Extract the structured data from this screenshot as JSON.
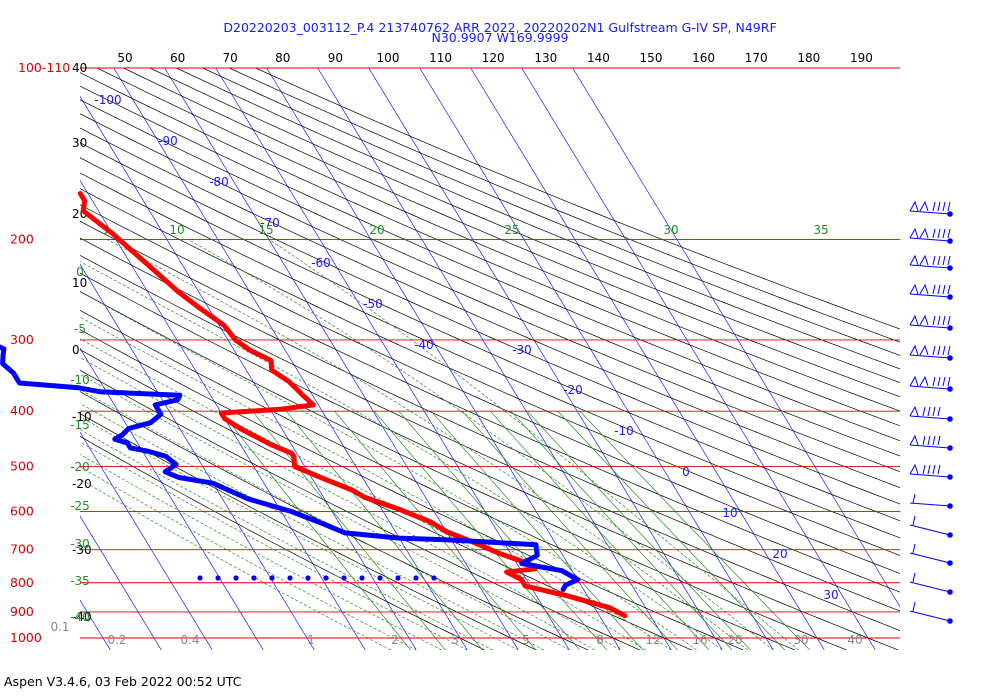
{
  "chart_data": {
    "type": "line",
    "title": "D20220203_003112_P.4 213740762 ARR 2022, 20220202N1 Gulfstream G-IV SP, N49RF",
    "subtitle": "N30.9907 W169.9999",
    "footer": "Aspen V3.4.6, 03 Feb 2022  00:52 UTC",
    "pressure_label_top": "100-110",
    "pressure_levels": [
      {
        "label": "100-110",
        "p": 100
      },
      {
        "label": "200",
        "p": 200
      },
      {
        "label": "300",
        "p": 300
      },
      {
        "label": "400",
        "p": 400
      },
      {
        "label": "500",
        "p": 500
      },
      {
        "label": "600",
        "p": 600
      },
      {
        "label": "700",
        "p": 700
      },
      {
        "label": "800",
        "p": 800
      },
      {
        "label": "900",
        "p": 900
      },
      {
        "label": "1000",
        "p": 1000
      }
    ],
    "top_axis_ticks": [
      "50",
      "60",
      "70",
      "80",
      "90",
      "100",
      "110",
      "120",
      "130",
      "140",
      "150",
      "160",
      "170",
      "180",
      "190"
    ],
    "left_altitude_labels": [
      "40",
      "30",
      "20",
      "10",
      "0",
      "-10",
      "-20",
      "-30",
      "-40"
    ],
    "isotherm_labels": [
      "-100",
      "-90",
      "-80",
      "-70",
      "-60",
      "-50",
      "-40",
      "-30",
      "-20",
      "-10",
      "0",
      "10",
      "20",
      "30"
    ],
    "dry_adiabat_labels": [
      "5",
      "10",
      "15",
      "20",
      "25",
      "30",
      "35"
    ],
    "moist_adiabat_labels": [
      "0",
      "-5",
      "-10",
      "-15",
      "-20",
      "-25",
      "-30",
      "-35",
      "-40"
    ],
    "mixing_ratio_labels": [
      "0.1",
      "0.2",
      "0.4",
      "1",
      "2",
      "3",
      "5",
      "8",
      "12",
      "16",
      "20",
      "30",
      "40"
    ],
    "series": [
      {
        "name": "Temperature",
        "color": "#ff0000",
        "x_unit": "degC",
        "y_unit": "hPa",
        "points": [
          [
            -51.5,
            166
          ],
          [
            -51.5,
            171
          ],
          [
            -53,
            178
          ],
          [
            -50,
            195
          ],
          [
            -47.5,
            215
          ],
          [
            -46,
            228
          ],
          [
            -44,
            247
          ],
          [
            -42,
            262
          ],
          [
            -39,
            283
          ],
          [
            -38.5,
            300
          ],
          [
            -37,
            312
          ],
          [
            -34,
            326
          ],
          [
            -35,
            339
          ],
          [
            -33,
            355
          ],
          [
            -32,
            373
          ],
          [
            -31,
            390
          ],
          [
            -38,
            397
          ],
          [
            -50,
            403
          ],
          [
            -50,
            412
          ],
          [
            -48,
            430
          ],
          [
            -44,
            458
          ],
          [
            -41,
            474
          ],
          [
            -41,
            482
          ],
          [
            -42,
            500
          ],
          [
            -37.5,
            527
          ],
          [
            -33.5,
            550
          ],
          [
            -32,
            566
          ],
          [
            -26.5,
            595
          ],
          [
            -22,
            625
          ],
          [
            -20,
            650
          ],
          [
            -16,
            679
          ],
          [
            -12,
            712
          ],
          [
            -8,
            738
          ],
          [
            -7,
            756
          ],
          [
            -13,
            766
          ],
          [
            -11,
            789
          ],
          [
            -11,
            811
          ],
          [
            -4,
            843
          ],
          [
            3,
            885
          ],
          [
            5,
            914
          ]
        ]
      },
      {
        "name": "Dewpoint",
        "color": "#0000ff",
        "x_unit": "degC",
        "y_unit": "hPa",
        "points": [
          [
            -81,
            206
          ],
          [
            -83,
            222
          ],
          [
            -82,
            230
          ],
          [
            -82,
            240
          ],
          [
            -84,
            257
          ],
          [
            -86,
            275
          ],
          [
            -86,
            285
          ],
          [
            -88,
            294
          ],
          [
            -87,
            303
          ],
          [
            -85,
            311
          ],
          [
            -86,
            320
          ],
          [
            -87,
            330
          ],
          [
            -86,
            343
          ],
          [
            -86,
            357
          ],
          [
            -75,
            364
          ],
          [
            -71,
            370
          ],
          [
            -56,
            375
          ],
          [
            -57,
            382
          ],
          [
            -62,
            390
          ],
          [
            -62,
            405
          ],
          [
            -65,
            419
          ],
          [
            -70,
            429
          ],
          [
            -72,
            440
          ],
          [
            -74,
            448
          ],
          [
            -72,
            455
          ],
          [
            -72,
            464
          ],
          [
            -69,
            470
          ],
          [
            -66,
            480
          ],
          [
            -65,
            496
          ],
          [
            -68,
            511
          ],
          [
            -66,
            523
          ],
          [
            -60,
            535
          ],
          [
            -55,
            570
          ],
          [
            -48,
            600
          ],
          [
            -43,
            632
          ],
          [
            -40,
            654
          ],
          [
            -30,
            668
          ],
          [
            -20,
            673
          ],
          [
            -4,
            686
          ],
          [
            -5,
            716
          ],
          [
            -9,
            740
          ],
          [
            -2,
            762
          ],
          [
            0,
            790
          ],
          [
            -3,
            808
          ],
          [
            -4,
            822
          ]
        ]
      }
    ],
    "wind_barbs_count": 15
  }
}
